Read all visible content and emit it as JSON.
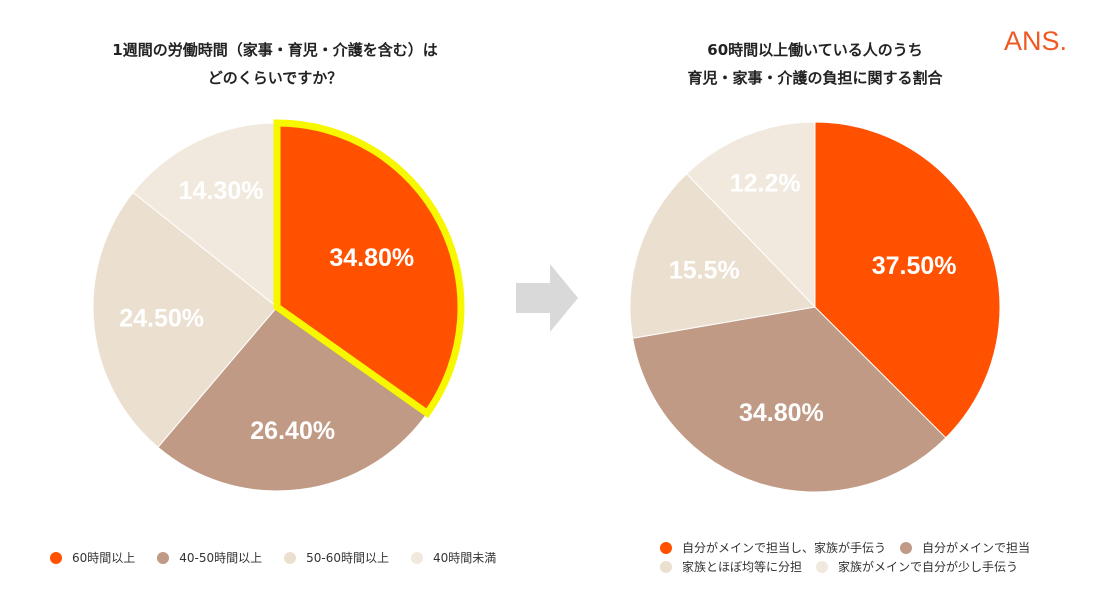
{
  "logo": "ANS.",
  "colors": {
    "orange": "#ff5100",
    "brown": "#c09a84",
    "beige": "#ebe0d0",
    "cream": "#f1e9dd",
    "highlight": "#f7f700",
    "arrow": "#d9d9d9"
  },
  "chart_data": [
    {
      "type": "pie",
      "title_lines": [
        "1週間の労働時間（家事・育児・介護を含む）は",
        "どのくらいですか？"
      ],
      "slices": [
        {
          "label": "60時間以上",
          "value": 34.8,
          "display": "34.80%",
          "color": "#ff5100",
          "highlighted": true
        },
        {
          "label": "40-50時間以上",
          "value": 26.4,
          "display": "26.40%",
          "color": "#c09a84"
        },
        {
          "label": "50-60時間以上",
          "value": 24.5,
          "display": "24.50%",
          "color": "#ebe0d0"
        },
        {
          "label": "40時間未満",
          "value": 14.3,
          "display": "14.30%",
          "color": "#f1e9dd"
        }
      ],
      "legend_placement": "bottom"
    },
    {
      "type": "pie",
      "title_lines": [
        "60時間以上働いている人のうち",
        "育児・家事・介護の負担に関する割合"
      ],
      "slices": [
        {
          "label": "自分がメインで担当し、家族が手伝う",
          "value": 37.5,
          "display": "37.50%",
          "color": "#ff5100"
        },
        {
          "label": "自分がメインで担当",
          "value": 34.8,
          "display": "34.80%",
          "color": "#c09a84"
        },
        {
          "label": "家族とほぼ均等に分担",
          "value": 15.5,
          "display": "15.5%",
          "color": "#ebe0d0"
        },
        {
          "label": "家族がメインで自分が少し手伝う",
          "value": 12.2,
          "display": "12.2%",
          "color": "#f1e9dd"
        }
      ],
      "legend_placement": "bottom"
    }
  ]
}
